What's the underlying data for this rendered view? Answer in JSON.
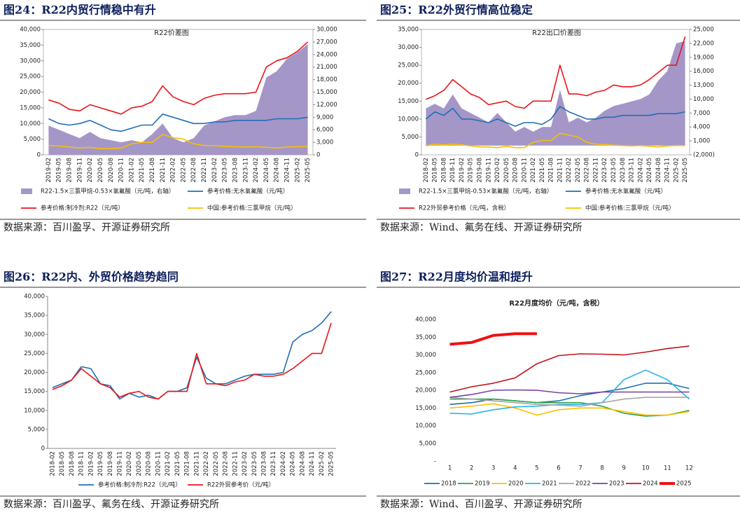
{
  "chart_data": [
    {
      "type": "line",
      "heading": "图24：R22内贸行情稳中有升",
      "title": "R22价差图",
      "source": "数据来源：百川盈孚、开源证券研究所",
      "categories": [
        "2019-02",
        "2019-05",
        "2019-08",
        "2019-11",
        "2020-02",
        "2020-05",
        "2020-08",
        "2020-11",
        "2021-02",
        "2021-05",
        "2021-08",
        "2021-11",
        "2022-02",
        "2022-05",
        "2022-08",
        "2022-11",
        "2023-02",
        "2023-05",
        "2023-08",
        "2023-11",
        "2024-02",
        "2024-05",
        "2024-08",
        "2024-11",
        "2025-02",
        "2025-05"
      ],
      "ylim": [
        0,
        40000
      ],
      "yticks": [
        0,
        {
          "value": 5000,
          "label": "5,000"
        },
        {
          "value": 10000,
          "label": "10,000"
        },
        {
          "value": 15000,
          "label": "15,000"
        },
        {
          "value": 20000,
          "label": "20,000"
        },
        {
          "value": 25000,
          "label": "25,000"
        },
        {
          "value": 30000,
          "label": "30,000"
        },
        {
          "value": 35000,
          "label": "35,000"
        },
        {
          "value": 40000,
          "label": "40,000"
        }
      ],
      "y2lim": [
        0,
        30000
      ],
      "y2ticks": [
        0,
        {
          "value": 3000,
          "label": "3,000"
        },
        {
          "value": 6000,
          "label": "6,000"
        },
        {
          "value": 9000,
          "label": "9,000"
        },
        {
          "value": 12000,
          "label": "12,000"
        },
        {
          "value": 15000,
          "label": "15,000"
        },
        {
          "value": 18000,
          "label": "18,000"
        },
        {
          "value": 21000,
          "label": "21,000"
        },
        {
          "value": 24000,
          "label": "24,000"
        },
        {
          "value": 27000,
          "label": "27,000"
        },
        {
          "value": 30000,
          "label": "30,000"
        }
      ],
      "series": [
        {
          "name": "R22-1.5×三氯甲烷-0.53×氢氟酸（元/吨，右轴）",
          "type": "area",
          "axis": "y2",
          "color": "#a596c8",
          "values": [
            7000,
            6000,
            5000,
            4000,
            5500,
            4000,
            3500,
            3000,
            3500,
            3000,
            5000,
            7500,
            4000,
            3000,
            4000,
            7000,
            8000,
            9000,
            9500,
            9500,
            10500,
            18500,
            20000,
            23000,
            24500,
            26500
          ]
        },
        {
          "name": "参考价格:无水氢氟酸（元/吨）",
          "color": "#1f6fb5",
          "values": [
            11500,
            10000,
            9500,
            10000,
            11000,
            9500,
            8000,
            7500,
            8500,
            9500,
            9500,
            13000,
            12000,
            11000,
            10000,
            10000,
            10500,
            10500,
            11000,
            11000,
            11000,
            11000,
            11500,
            11500,
            11500,
            12000
          ]
        },
        {
          "name": "参考价格:制冷剂:R22（元/吨）",
          "color": "#e8161b",
          "values": [
            17500,
            16500,
            14500,
            14000,
            16000,
            15000,
            14000,
            13000,
            15000,
            15500,
            17000,
            22000,
            18500,
            17000,
            16000,
            18000,
            19000,
            19500,
            19500,
            19500,
            20000,
            28000,
            30000,
            31000,
            33000,
            36000
          ]
        },
        {
          "name": "中国:参考价格:三氯甲烷（元/吨）",
          "color": "#f6c000",
          "values": [
            3000,
            2800,
            2500,
            2200,
            2400,
            2000,
            2000,
            2200,
            3500,
            4000,
            4000,
            6500,
            5500,
            5000,
            3500,
            3000,
            2900,
            2700,
            2600,
            2500,
            2600,
            2400,
            2200,
            2500,
            2600,
            2600
          ]
        }
      ]
    },
    {
      "type": "line",
      "heading": "图25：R22外贸行情高位稳定",
      "title": "R22出口价差图",
      "source": "数据来源：Wind、氟务在线、开源证券研究所",
      "categories": [
        "2018-02",
        "2018-05",
        "2018-08",
        "2018-11",
        "2019-02",
        "2019-05",
        "2019-08",
        "2019-11",
        "2020-02",
        "2020-05",
        "2020-08",
        "2020-11",
        "2021-02",
        "2021-05",
        "2021-08",
        "2021-11",
        "2022-02",
        "2022-05",
        "2022-08",
        "2022-11",
        "2023-02",
        "2023-05",
        "2023-08",
        "2023-11",
        "2024-02",
        "2024-05",
        "2024-08",
        "2024-11",
        "2025-02",
        "2025-05"
      ],
      "ylim": [
        0,
        35000
      ],
      "yticks": [
        0,
        {
          "value": 5000,
          "label": "5,000"
        },
        {
          "value": 10000,
          "label": "10,000"
        },
        {
          "value": 15000,
          "label": "15,000"
        },
        {
          "value": 20000,
          "label": "20,000"
        },
        {
          "value": 25000,
          "label": "25,000"
        },
        {
          "value": 30000,
          "label": "30,000"
        },
        {
          "value": 35000,
          "label": "35,000"
        }
      ],
      "y2lim": [
        -2000,
        25000
      ],
      "y2ticks": [
        {
          "value": -2000,
          "label": "(2,000)"
        },
        {
          "value": 1000,
          "label": "1,000"
        },
        {
          "value": 4000,
          "label": "4,000"
        },
        {
          "value": 7000,
          "label": "7,000"
        },
        {
          "value": 10000,
          "label": "10,000"
        },
        {
          "value": 13000,
          "label": "13,000"
        },
        {
          "value": 16000,
          "label": "16,000"
        },
        {
          "value": 19000,
          "label": "19,000"
        },
        {
          "value": 22000,
          "label": "22,000"
        },
        {
          "value": 25000,
          "label": "25,000"
        }
      ],
      "series": [
        {
          "name": "R22-1.5×三氯甲烷-0.53×氢氟酸（元/吨，右轴）",
          "type": "area",
          "axis": "y2",
          "color": "#a596c8",
          "values": [
            8000,
            9000,
            8000,
            11000,
            8000,
            7000,
            6000,
            5000,
            7000,
            5000,
            3000,
            4000,
            3000,
            4000,
            4000,
            12000,
            5000,
            6000,
            5000,
            6000,
            7500,
            8500,
            9000,
            9500,
            10000,
            11000,
            14000,
            16000,
            22000,
            22500
          ]
        },
        {
          "name": "参考价格:无水氢氟酸（元/吨）",
          "color": "#1f6fb5",
          "values": [
            10000,
            12000,
            11000,
            13000,
            10000,
            10000,
            9500,
            9000,
            10000,
            9000,
            8000,
            9000,
            9000,
            8500,
            10000,
            13500,
            12000,
            11000,
            10000,
            10000,
            10500,
            10500,
            11000,
            11000,
            11000,
            11000,
            11500,
            11500,
            11500,
            12000
          ]
        },
        {
          "name": "R22外贸参考价格（元/吨，含税）",
          "color": "#e8161b",
          "values": [
            15500,
            16500,
            18000,
            21000,
            19000,
            17000,
            16000,
            14000,
            14500,
            15000,
            13500,
            13000,
            15000,
            15000,
            15000,
            25000,
            17000,
            17000,
            16500,
            17500,
            18000,
            19500,
            19000,
            19000,
            19500,
            21000,
            23000,
            25000,
            25000,
            33000
          ]
        },
        {
          "name": "中国:参考价格:三氯甲烷（元/吨）",
          "color": "#f6c000",
          "values": [
            2500,
            3000,
            2800,
            3000,
            2800,
            2500,
            2200,
            2200,
            2000,
            2400,
            2000,
            2000,
            3500,
            4000,
            4000,
            6000,
            5500,
            5000,
            3500,
            3000,
            2900,
            2700,
            2600,
            2500,
            2600,
            2400,
            2200,
            2500,
            2600,
            2600
          ]
        }
      ]
    },
    {
      "type": "line",
      "heading": "图26：R22内、外贸价格趋势趋同",
      "source": "数据来源：百川盈孚、氟务在线、开源证券研究所",
      "categories": [
        "2018-02",
        "2018-05",
        "2018-08",
        "2018-11",
        "2019-02",
        "2019-05",
        "2019-08",
        "2019-11",
        "2020-02",
        "2020-05",
        "2020-08",
        "2020-11",
        "2021-02",
        "2021-05",
        "2021-08",
        "2021-11",
        "2022-02",
        "2022-05",
        "2022-08",
        "2022-11",
        "2023-02",
        "2023-05",
        "2023-08",
        "2023-11",
        "2024-02",
        "2024-05",
        "2024-08",
        "2024-11",
        "2025-02",
        "2025-05"
      ],
      "ylim": [
        0,
        40000
      ],
      "yticks": [
        0,
        {
          "value": 5000,
          "label": "5,000"
        },
        {
          "value": 10000,
          "label": "10,000"
        },
        {
          "value": 15000,
          "label": "15,000"
        },
        {
          "value": 20000,
          "label": "20,000"
        },
        {
          "value": 25000,
          "label": "25,000"
        },
        {
          "value": 30000,
          "label": "30,000"
        },
        {
          "value": 35000,
          "label": "35,000"
        },
        {
          "value": 40000,
          "label": "40,000"
        }
      ],
      "series": [
        {
          "name": "参考价格:制冷剂:R22（元/吨）",
          "color": "#1f6fb5",
          "values": [
            16000,
            17000,
            18000,
            21500,
            21000,
            17000,
            16500,
            13000,
            14500,
            13500,
            14000,
            13000,
            15000,
            15000,
            16000,
            24000,
            18500,
            17000,
            17000,
            18000,
            19000,
            19500,
            19500,
            19500,
            20000,
            28000,
            30000,
            31000,
            33000,
            36000
          ]
        },
        {
          "name": "R22外贸参考价（元/吨）",
          "color": "#e8161b",
          "values": [
            15500,
            16500,
            18000,
            21000,
            19000,
            17000,
            16000,
            13500,
            14500,
            15000,
            13500,
            13000,
            15000,
            15000,
            15000,
            25000,
            17000,
            17000,
            16500,
            17500,
            18000,
            19500,
            19000,
            19000,
            19500,
            21000,
            23000,
            25000,
            25000,
            33000
          ]
        }
      ]
    },
    {
      "type": "line",
      "heading": "图27：R22月度均价温和提升",
      "title": "R22月度均价（元/吨，含税）",
      "source": "数据来源：Wind、百川盈孚、开源证券研究所",
      "categories": [
        "1",
        "2",
        "3",
        "4",
        "5",
        "6",
        "7",
        "8",
        "9",
        "10",
        "11",
        "12"
      ],
      "ylim": [
        0,
        40000
      ],
      "yticks": [
        {
          "value": 0,
          "label": "-"
        },
        {
          "value": 5000,
          "label": "5,000"
        },
        {
          "value": 10000,
          "label": "10,000"
        },
        {
          "value": 15000,
          "label": "15,000"
        },
        {
          "value": 20000,
          "label": "20,000"
        },
        {
          "value": 25000,
          "label": "25,000"
        },
        {
          "value": 30000,
          "label": "30,000"
        },
        {
          "value": 35000,
          "label": "35,000"
        },
        {
          "value": 40000,
          "label": "40,000"
        }
      ],
      "series": [
        {
          "name": "2018",
          "color": "#1f6fb5",
          "values": [
            16000,
            16500,
            17500,
            17000,
            16500,
            17000,
            18500,
            19500,
            20500,
            22000,
            22000,
            20500
          ]
        },
        {
          "name": "2019",
          "color": "#2ca34a",
          "values": [
            17500,
            17500,
            17500,
            17000,
            16500,
            16500,
            16500,
            15500,
            13500,
            12700,
            13000,
            14300
          ]
        },
        {
          "name": "2020",
          "color": "#ffc000",
          "values": [
            15000,
            15500,
            16200,
            15000,
            13000,
            14500,
            15000,
            15000,
            14000,
            13000,
            13000,
            14000
          ]
        },
        {
          "name": "2021",
          "color": "#2bb5e8",
          "values": [
            13500,
            13300,
            14500,
            15300,
            15500,
            16000,
            16000,
            16500,
            23000,
            25700,
            23000,
            17500
          ]
        },
        {
          "name": "2022",
          "color": "#a5a5a5",
          "values": [
            18000,
            17500,
            17000,
            16500,
            16000,
            15800,
            15500,
            16500,
            17500,
            18000,
            18000,
            18000
          ]
        },
        {
          "name": "2023",
          "color": "#7a3f9e",
          "values": [
            18000,
            18800,
            20000,
            20100,
            20000,
            19300,
            19000,
            19500,
            19500,
            19500,
            19500,
            19500
          ]
        },
        {
          "name": "2024",
          "color": "#c0141b",
          "values": [
            19500,
            21000,
            22000,
            23500,
            27500,
            29800,
            30300,
            30200,
            30000,
            30800,
            31800,
            32500
          ]
        },
        {
          "name": "2025",
          "color": "#ee1111",
          "line_width": 4,
          "values": [
            33000,
            33500,
            35500,
            36000,
            36000,
            null,
            null,
            null,
            null,
            null,
            null,
            null
          ]
        }
      ]
    }
  ]
}
